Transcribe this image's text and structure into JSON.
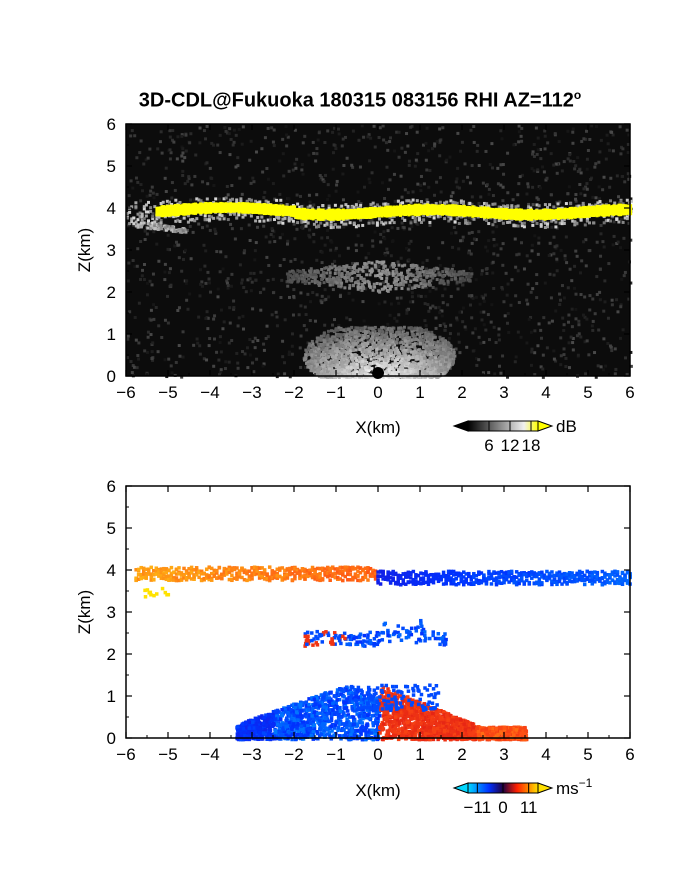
{
  "title": {
    "main": "3D-CDL@Fukuoka 180315 083156 RHI AZ=112",
    "degree": "o"
  },
  "chart_data": [
    {
      "type": "heatmap",
      "panel": "reflectivity",
      "xlabel": "X(km)",
      "ylabel": "Z(km)",
      "xlim": [
        -6,
        6
      ],
      "ylim": [
        0,
        6
      ],
      "xticks": [
        "-6",
        "-5",
        "-4",
        "-3",
        "-2",
        "-1",
        "0",
        "1",
        "2",
        "3",
        "4",
        "5",
        "6"
      ],
      "yticks": [
        "0",
        "1",
        "2",
        "3",
        "4",
        "5",
        "6"
      ],
      "colorbar": {
        "unit": "dB",
        "ticks": [
          "6",
          "12",
          "18"
        ],
        "range": [
          0,
          20
        ]
      },
      "features": [
        {
          "name": "bright layer",
          "x": [
            -5.3,
            6
          ],
          "z": 3.9,
          "value_db": 20
        },
        {
          "name": "thin upper echo",
          "x": [
            -5.8,
            -4.6
          ],
          "z": 3.5,
          "value_db": 10
        },
        {
          "name": "mid-level echo",
          "x": [
            -2.2,
            2.2
          ],
          "z": 2.4,
          "value_db": 8
        },
        {
          "name": "near-ground fan",
          "x": [
            -2.3,
            2.5
          ],
          "z": [
            0,
            1.2
          ],
          "value_db": 14
        }
      ]
    },
    {
      "type": "heatmap",
      "panel": "doppler velocity",
      "xlabel": "X(km)",
      "ylabel": "Z(km)",
      "xlim": [
        -6,
        6
      ],
      "ylim": [
        0,
        6
      ],
      "xticks": [
        "-6",
        "-5",
        "-4",
        "-3",
        "-2",
        "-1",
        "0",
        "1",
        "2",
        "3",
        "4",
        "5",
        "6"
      ],
      "yticks": [
        "0",
        "1",
        "2",
        "3",
        "4",
        "5",
        "6"
      ],
      "colorbar": {
        "unit": "ms",
        "unit_exp": "-1",
        "ticks": [
          "-11",
          "0",
          "11"
        ],
        "range": [
          -15,
          15
        ]
      },
      "features": [
        {
          "name": "upper layer west",
          "x": [
            -6,
            -0.1
          ],
          "z": 3.95,
          "velocity": 10
        },
        {
          "name": "upper layer east",
          "x": [
            -0.1,
            6
          ],
          "z": 3.85,
          "velocity": -10
        },
        {
          "name": "mid-level echo",
          "x": [
            -1.8,
            1.6
          ],
          "z": 2.4,
          "velocity": -8
        },
        {
          "name": "near-ground west",
          "x": [
            -3.4,
            0
          ],
          "z": [
            0,
            1.3
          ],
          "velocity": -9
        },
        {
          "name": "near-ground east",
          "x": [
            0,
            3.5
          ],
          "z": [
            0,
            1.3
          ],
          "velocity": 4
        }
      ]
    }
  ]
}
